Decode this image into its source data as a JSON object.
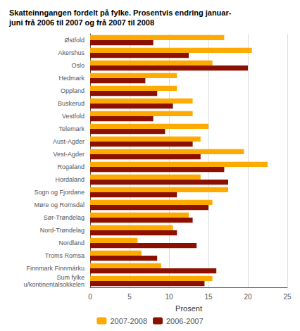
{
  "chart_data": {
    "type": "bar",
    "title": "Skatteinngangen fordelt på fylke. Prosentvis endring januar-\njuni frå 2006 til 2007 og frå 2007 til 2008",
    "orientation": "horizontal",
    "categories": [
      "Østfold",
      "Akershus",
      "Oslo",
      "Hedmark",
      "Oppland",
      "Buskerud",
      "Vestfold",
      "Telemark",
      "Aust-Agder",
      "Vest-Agder",
      "Rogaland",
      "Hordaland",
      "Sogn og Fjordane",
      "Møre og Romsdal",
      "Sør-Trøndelag",
      "Nord-Trøndelag",
      "Nordland",
      "Troms Romsa",
      "Finnmark Finnmárku",
      "Sum fylke\nu/kontinentalsokkelen"
    ],
    "series": [
      {
        "name": "2007-2008",
        "color": "#FFAA00",
        "values": [
          17.0,
          20.5,
          15.5,
          11.0,
          11.0,
          13.0,
          13.0,
          15.0,
          14.0,
          19.5,
          22.5,
          14.0,
          17.5,
          15.5,
          12.5,
          10.5,
          6.0,
          6.5,
          9.0,
          15.5
        ]
      },
      {
        "name": "2006-2007",
        "color": "#8B1000",
        "values": [
          8.0,
          12.5,
          20.0,
          7.0,
          8.5,
          10.5,
          8.0,
          9.5,
          13.0,
          14.0,
          17.0,
          17.5,
          11.0,
          15.0,
          13.0,
          11.0,
          13.5,
          8.5,
          16.0,
          14.5
        ]
      }
    ],
    "xlabel": "Prosent",
    "xlim": [
      0,
      25
    ],
    "xticks": [
      0,
      5,
      10,
      15,
      20,
      25
    ],
    "grid": true,
    "legend": "bottom"
  }
}
